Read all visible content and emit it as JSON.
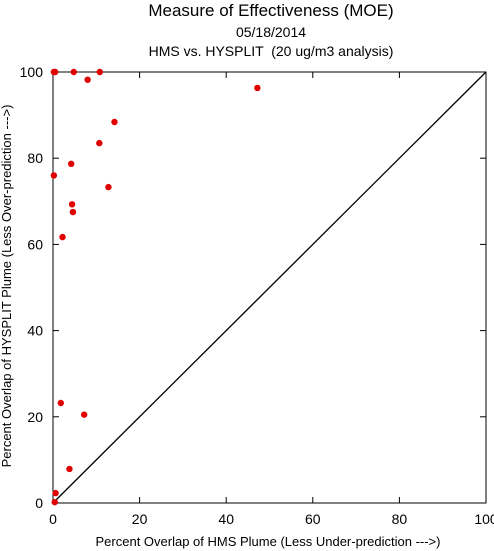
{
  "chart_data": {
    "type": "scatter",
    "title": "Measure of Effectiveness (MOE)",
    "subtitle": "05/18/2014",
    "subtitle2": "HMS vs. HYSPLIT  (20 ug/m3 analysis)",
    "xlabel": "Percent Overlap of HMS Plume (Less Under-prediction --->)",
    "ylabel": "Percent Overlap of HYSPLIT Plume (Less Over-prediction --->)",
    "xlim": [
      0,
      100
    ],
    "ylim": [
      0,
      100
    ],
    "xticks": [
      0,
      20,
      40,
      60,
      80,
      100
    ],
    "yticks": [
      0,
      20,
      40,
      60,
      80,
      100
    ],
    "point_color": "#e00000",
    "reference_line": "y = x",
    "points": [
      {
        "x": 0.2,
        "y": 100
      },
      {
        "x": 0.5,
        "y": 100
      },
      {
        "x": 4.8,
        "y": 100
      },
      {
        "x": 10.8,
        "y": 100
      },
      {
        "x": 8.0,
        "y": 98.2
      },
      {
        "x": 47.2,
        "y": 96.3
      },
      {
        "x": 14.2,
        "y": 88.4
      },
      {
        "x": 10.7,
        "y": 83.5
      },
      {
        "x": 4.2,
        "y": 78.7
      },
      {
        "x": 0.2,
        "y": 76.0
      },
      {
        "x": 12.8,
        "y": 73.3
      },
      {
        "x": 4.4,
        "y": 69.3
      },
      {
        "x": 4.6,
        "y": 67.5
      },
      {
        "x": 2.2,
        "y": 61.7
      },
      {
        "x": 1.8,
        "y": 23.2
      },
      {
        "x": 7.2,
        "y": 20.5
      },
      {
        "x": 3.8,
        "y": 7.9
      },
      {
        "x": 0.6,
        "y": 2.3
      },
      {
        "x": 0.4,
        "y": 0.2
      }
    ]
  }
}
